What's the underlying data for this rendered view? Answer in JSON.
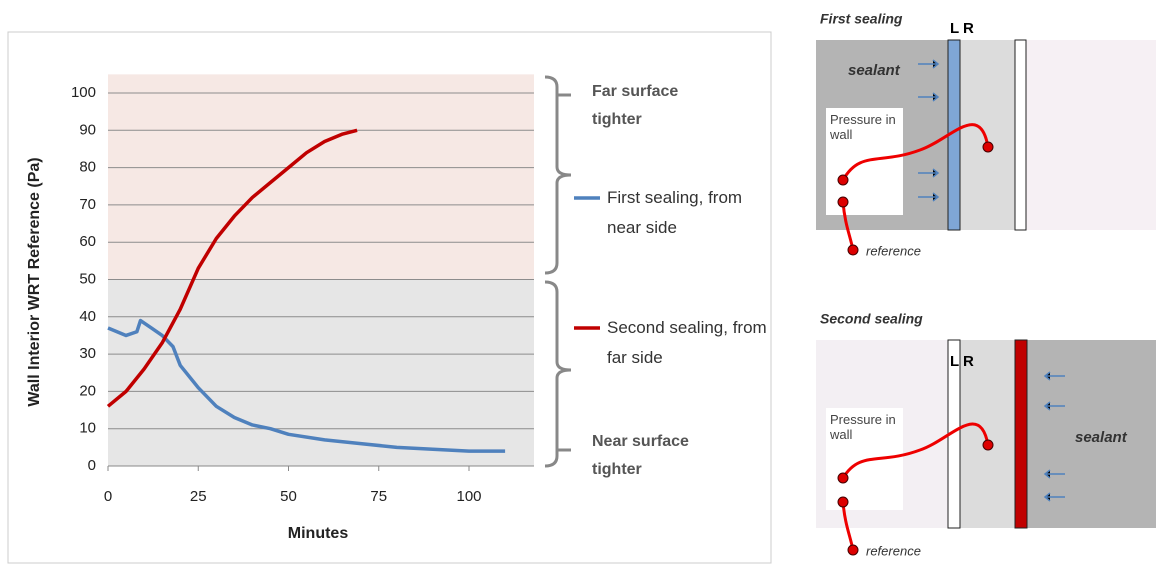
{
  "chart_data": {
    "type": "line",
    "ylabel": "Wall Interior WRT Reference (Pa)",
    "xlabel": "Minutes",
    "xlim": [
      0,
      118
    ],
    "xticks": [
      0,
      25,
      50,
      75,
      100
    ],
    "ylim": [
      0,
      105
    ],
    "yticks": [
      0,
      10,
      20,
      30,
      40,
      50,
      60,
      70,
      80,
      90,
      100
    ],
    "grid": true,
    "bands": [
      {
        "range": [
          50,
          105
        ],
        "color": "#f6e8e4"
      },
      {
        "range": [
          0,
          50
        ],
        "color": "#e6e6e6"
      }
    ],
    "annotations": [
      "Far surface tighter",
      "Near surface tighter"
    ],
    "series": [
      {
        "name": "First sealing, from near side",
        "color": "#4f81bd",
        "x": [
          0,
          5,
          8,
          9,
          12,
          15,
          18,
          20,
          25,
          30,
          35,
          40,
          45,
          50,
          60,
          70,
          80,
          90,
          100,
          110
        ],
        "values": [
          37,
          35,
          36,
          39,
          37,
          35,
          32,
          27,
          21,
          16,
          13,
          11,
          10,
          8.5,
          7,
          6,
          5,
          4.5,
          4,
          4
        ]
      },
      {
        "name": "Second sealing, from far side",
        "color": "#c00000",
        "x": [
          0,
          5,
          10,
          15,
          20,
          25,
          30,
          35,
          40,
          45,
          50,
          55,
          60,
          65,
          69
        ],
        "values": [
          16,
          20,
          26,
          33,
          42,
          53,
          61,
          67,
          72,
          76,
          80,
          84,
          87,
          89,
          90
        ]
      }
    ]
  },
  "diagrams": [
    {
      "title": "First sealing",
      "sides": "L R",
      "sealant": "sealant",
      "pressure": "Pressure in wall",
      "reference": "reference"
    },
    {
      "title": "Second sealing",
      "sides": "L R",
      "sealant": "sealant",
      "pressure": "Pressure in wall",
      "reference": "reference"
    }
  ]
}
